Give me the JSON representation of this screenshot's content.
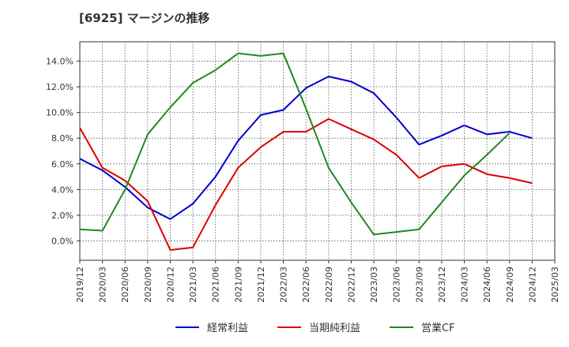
{
  "chart_data": {
    "type": "line",
    "title": "[6925]  マージンの推移",
    "xlabel": "",
    "ylabel": "",
    "ylim": [
      -1.5,
      15.5
    ],
    "yticks": [
      0,
      2,
      4,
      6,
      8,
      10,
      12,
      14
    ],
    "ytick_labels": [
      "0.0%",
      "2.0%",
      "4.0%",
      "6.0%",
      "8.0%",
      "10.0%",
      "12.0%",
      "14.0%"
    ],
    "grid": true,
    "legend_position": "bottom",
    "categories": [
      "2019/12",
      "2020/03",
      "2020/06",
      "2020/09",
      "2020/12",
      "2021/03",
      "2021/06",
      "2021/09",
      "2021/12",
      "2022/03",
      "2022/06",
      "2022/09",
      "2022/12",
      "2023/03",
      "2023/06",
      "2023/09",
      "2023/12",
      "2024/03",
      "2024/06",
      "2024/09",
      "2024/12",
      "2025/03"
    ],
    "series": [
      {
        "name": "経常利益",
        "color": "#0000cc",
        "values": [
          6.4,
          5.5,
          4.2,
          2.6,
          1.7,
          2.9,
          5.0,
          7.8,
          9.8,
          10.2,
          11.9,
          12.8,
          12.4,
          11.5,
          9.6,
          7.5,
          8.2,
          9.0,
          8.3,
          8.5,
          8.0,
          null
        ]
      },
      {
        "name": "当期純利益",
        "color": "#dd0000",
        "values": [
          8.8,
          5.7,
          4.7,
          3.1,
          -0.7,
          -0.5,
          2.8,
          5.7,
          7.3,
          8.5,
          8.5,
          9.5,
          8.7,
          7.9,
          6.7,
          4.9,
          5.8,
          6.0,
          5.2,
          4.9,
          4.5,
          null
        ]
      },
      {
        "name": "営業CF",
        "color": "#228822",
        "values": [
          0.9,
          0.8,
          4.0,
          8.3,
          10.4,
          12.3,
          13.3,
          14.6,
          14.4,
          14.6,
          10.3,
          5.7,
          3.0,
          0.5,
          0.7,
          0.9,
          3.0,
          5.1,
          6.7,
          8.4,
          null,
          null
        ]
      }
    ]
  }
}
